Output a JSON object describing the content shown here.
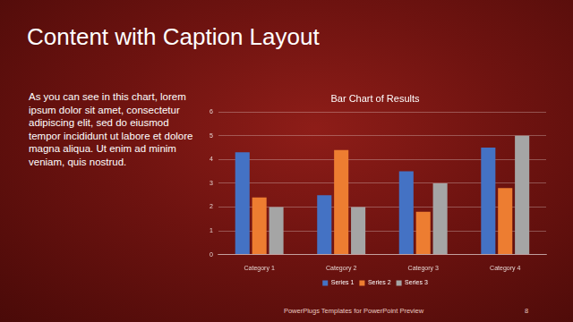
{
  "page": {
    "title": "Content with Caption Layout",
    "caption": "As you can see in this chart, lorem ipsum dolor sit amet, consectetur adipiscing elit, sed do eiusmod tempor incididunt ut labore et dolore magna aliqua. Ut enim ad minim veniam, quis nostrud.",
    "footer": "PowerPlugs Templates for PowerPoint Preview",
    "page_number": 8
  },
  "chart_data": {
    "type": "bar",
    "title": "Bar Chart of Results",
    "categories": [
      "Category 1",
      "Category 2",
      "Category 3",
      "Category 4"
    ],
    "series": [
      {
        "name": "Series 1",
        "color": "#4472c4",
        "values": [
          4.3,
          2.5,
          3.5,
          4.5
        ]
      },
      {
        "name": "Series 2",
        "color": "#ed7d31",
        "values": [
          2.4,
          4.4,
          1.8,
          2.8
        ]
      },
      {
        "name": "Series 3",
        "color": "#a5a5a5",
        "values": [
          2,
          2,
          3,
          5
        ]
      }
    ],
    "ylim": [
      0,
      6
    ],
    "yticks": [
      0,
      1,
      2,
      3,
      4,
      5,
      6
    ],
    "grid": true,
    "legend": "bottom"
  }
}
